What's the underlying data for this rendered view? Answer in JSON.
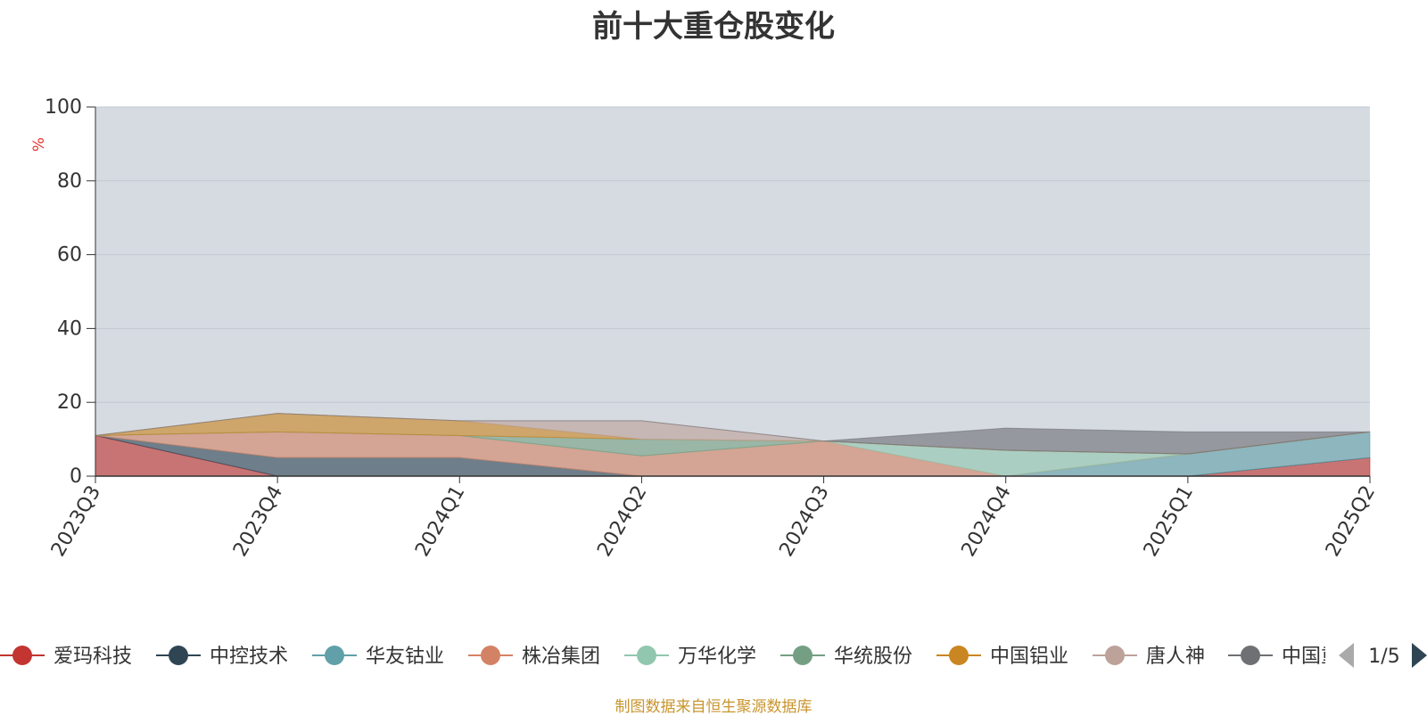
{
  "chart_data": {
    "type": "area",
    "title": "前十大重仓股变化",
    "ylabel": "%",
    "xlabel": "",
    "ylim": [
      0,
      100
    ],
    "yticks": [
      0,
      20,
      40,
      60,
      80,
      100
    ],
    "grid": true,
    "legend_position": "bottom",
    "categories": [
      "2023Q3",
      "2023Q4",
      "2024Q1",
      "2024Q2",
      "2024Q3",
      "2024Q4",
      "2025Q1",
      "2025Q2"
    ],
    "series": [
      {
        "name": "爱玛科技",
        "color": "#c23531",
        "values": [
          11.0,
          0,
          0,
          0,
          0,
          0,
          0,
          5.0
        ]
      },
      {
        "name": "中控技术",
        "color": "#2f4554",
        "values": [
          0,
          5.0,
          5.0,
          0,
          0,
          0,
          0,
          0
        ]
      },
      {
        "name": "华友钴业",
        "color": "#61a0a8",
        "values": [
          0,
          0,
          0,
          0,
          0,
          0,
          6.0,
          7.0
        ]
      },
      {
        "name": "株冶集团",
        "color": "#d48265",
        "values": [
          0,
          7.0,
          6.0,
          5.5,
          9.5,
          0,
          0,
          0
        ]
      },
      {
        "name": "万华化学",
        "color": "#91c7ae",
        "values": [
          0,
          0,
          0,
          0,
          0,
          7.0,
          0,
          0
        ]
      },
      {
        "name": "华统股份",
        "color": "#749f83",
        "values": [
          0,
          0,
          0,
          4.5,
          0,
          0,
          0,
          0
        ]
      },
      {
        "name": "中国铝业",
        "color": "#ca8622",
        "values": [
          0,
          5.0,
          4.0,
          0,
          0,
          0,
          0,
          0
        ]
      },
      {
        "name": "唐人神",
        "color": "#bda29a",
        "values": [
          0,
          0,
          0,
          5.0,
          0,
          0,
          0,
          0
        ]
      },
      {
        "name": "中国重汽",
        "color": "#6e7074",
        "values": [
          0,
          0,
          0,
          0,
          0,
          6.0,
          6.0,
          0
        ]
      }
    ],
    "legend_page": "1/5"
  },
  "footer": "制图数据来自恒生聚源数据库"
}
